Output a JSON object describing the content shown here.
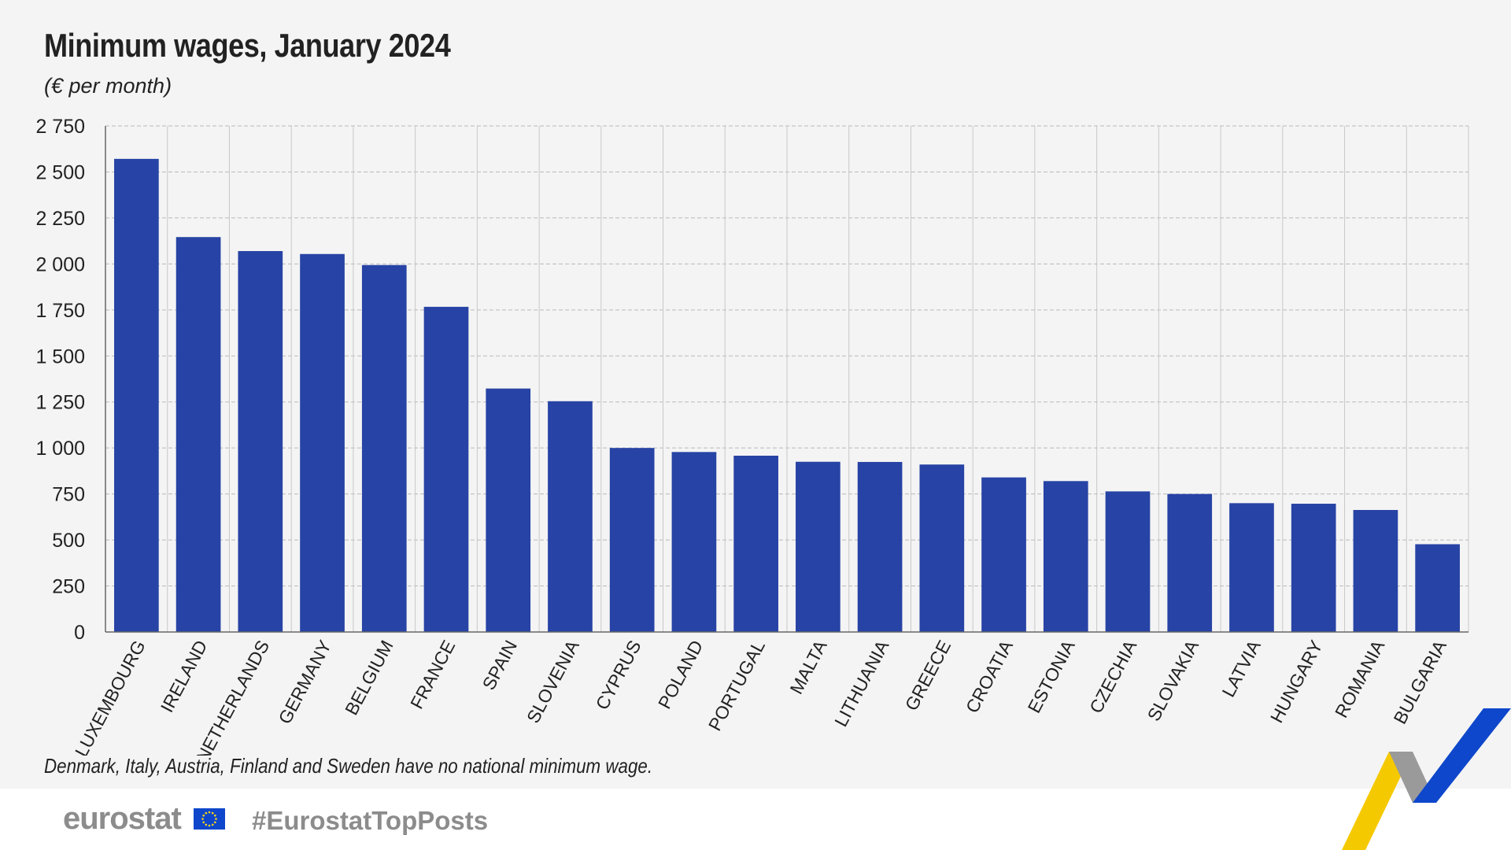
{
  "header": {
    "title": "Minimum wages, January 2024",
    "subtitle": "(€ per month)"
  },
  "note": "Denmark, Italy, Austria, Finland and Sweden have no national minimum wage.",
  "footer": {
    "logo_text": "eurostat",
    "hashtag": "#EurostatTopPosts"
  },
  "colors": {
    "bar": "#2743a5",
    "grid": "#b9b9b9",
    "axis": "#666666",
    "panel": "#f4f4f4",
    "eu_blue": "#0e47cb",
    "yellow": "#f5c900",
    "grey_stripe": "#9a9a9a"
  },
  "chart_data": {
    "type": "bar",
    "categories": [
      "LUXEMBOURG",
      "IRELAND",
      "NETHERLANDS",
      "GERMANY",
      "BELGIUM",
      "FRANCE",
      "SPAIN",
      "SLOVENIA",
      "CYPRUS",
      "POLAND",
      "PORTUGAL",
      "MALTA",
      "LITHUANIA",
      "GREECE",
      "CROATIA",
      "ESTONIA",
      "CZECHIA",
      "SLOVAKIA",
      "LATVIA",
      "HUNGARY",
      "ROMANIA",
      "BULGARIA"
    ],
    "values": [
      2571,
      2146,
      2070,
      2054,
      1994,
      1767,
      1323,
      1254,
      1000,
      978,
      958,
      925,
      924,
      910,
      840,
      820,
      764,
      750,
      700,
      697,
      663,
      477
    ],
    "title": "Minimum wages, January 2024",
    "ylabel": "",
    "xlabel": "",
    "ylim": [
      0,
      2750
    ],
    "yticks": [
      0,
      250,
      500,
      750,
      1000,
      1250,
      1500,
      1750,
      2000,
      2250,
      2500,
      2750
    ],
    "ytick_labels": [
      "0",
      "250",
      "500",
      "750",
      "1 000",
      "1 250",
      "1 500",
      "1 750",
      "2 000",
      "2 250",
      "2 500",
      "2 750"
    ],
    "grid": true,
    "legend": "none"
  }
}
